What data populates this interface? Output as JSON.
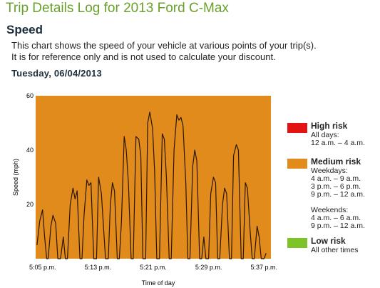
{
  "header": {
    "title": "Trip Details Log for 2013 Ford C-Max",
    "section": "Speed",
    "description": [
      "This chart shows the speed of your vehicle at various points of your trip(s).",
      "It is for reference only and is not used to calculate your discount."
    ],
    "date": "Tuesday, 06/04/2013"
  },
  "colors": {
    "plot_background": "#e08b1b",
    "line": "#2a1600",
    "title": "#6aa12c",
    "high_risk": "#e31313",
    "medium_risk": "#e08b1b",
    "low_risk": "#7cc428"
  },
  "legend": {
    "high": {
      "name": "High risk",
      "lines": [
        "All days:",
        "12 a.m. – 4 a.m."
      ]
    },
    "medium": {
      "name": "Medium risk",
      "lines": [
        "Weekdays:",
        "4 a.m. – 9 a.m.",
        "3 p.m. – 6 p.m.",
        "9 p.m. – 12 a.m.",
        "",
        "Weekends:",
        "4 a.m. – 6 a.m.",
        "9 p.m. – 12 a.m."
      ]
    },
    "low": {
      "name": "Low risk",
      "lines": [
        "All other times"
      ]
    }
  },
  "chart_data": {
    "type": "line",
    "xlabel": "Time of day",
    "ylabel": "Speed (mph)",
    "ylim": [
      0,
      60
    ],
    "yticks": [
      20,
      40,
      60
    ],
    "xlim_minutes_past_5pm": [
      4,
      38
    ],
    "xticks": [
      {
        "label": "5:05 p.m.",
        "minute": 5
      },
      {
        "label": "5:13 p.m.",
        "minute": 13
      },
      {
        "label": "5:21 p.m.",
        "minute": 21
      },
      {
        "label": "5:29 p.m.",
        "minute": 29
      },
      {
        "label": "5:37 p.m.",
        "minute": 37
      }
    ],
    "grid": false,
    "legend_position": "right",
    "series": [
      {
        "x": [
          4.2,
          4.6,
          5.0,
          5.3,
          5.6,
          5.8,
          6.2,
          6.5,
          6.9,
          7.2,
          7.6,
          8.0,
          8.3,
          8.6,
          9.0,
          9.4,
          9.7,
          10.0,
          10.4,
          10.7,
          11.0,
          11.4,
          11.7,
          12.0,
          12.4,
          12.8,
          13.1,
          13.5,
          13.8,
          14.1,
          14.5,
          14.8,
          15.1,
          15.4,
          15.8,
          16.1,
          16.4,
          16.8,
          17.1,
          17.4,
          17.8,
          18.1,
          18.5,
          18.9,
          19.2,
          19.5,
          19.9,
          20.2,
          20.5,
          20.9,
          21.2,
          21.5,
          21.9,
          22.3,
          22.6,
          22.9,
          23.3,
          23.6,
          24.0,
          24.4,
          24.7,
          25.0,
          25.3,
          25.7,
          26.0,
          26.3,
          26.7,
          27.0,
          27.3,
          27.7,
          28.0,
          28.3,
          28.6,
          29.0,
          29.3,
          29.7,
          30.0,
          30.3,
          30.6,
          31.0,
          31.3,
          31.6,
          32.0,
          32.3,
          32.6,
          33.0,
          33.3,
          33.7,
          34.0,
          34.3,
          34.6,
          35.0,
          35.3,
          35.6,
          36.0,
          36.3,
          36.6,
          37.0,
          37.3
        ],
        "y": [
          5,
          14,
          18,
          8,
          0,
          0,
          12,
          16,
          13,
          0,
          0,
          8,
          0,
          0,
          20,
          26,
          22,
          25,
          0,
          0,
          16,
          29,
          27,
          28,
          0,
          0,
          30,
          24,
          12,
          0,
          0,
          20,
          28,
          25,
          0,
          0,
          14,
          45,
          40,
          28,
          0,
          0,
          45,
          44,
          38,
          0,
          0,
          50,
          54,
          48,
          32,
          0,
          0,
          46,
          44,
          30,
          0,
          0,
          40,
          53,
          51,
          52,
          49,
          28,
          0,
          0,
          34,
          40,
          36,
          0,
          0,
          8,
          0,
          0,
          24,
          30,
          28,
          0,
          0,
          20,
          26,
          24,
          0,
          0,
          38,
          42,
          40,
          0,
          0,
          28,
          26,
          10,
          0,
          0,
          12,
          8,
          0,
          0,
          2
        ]
      }
    ]
  }
}
